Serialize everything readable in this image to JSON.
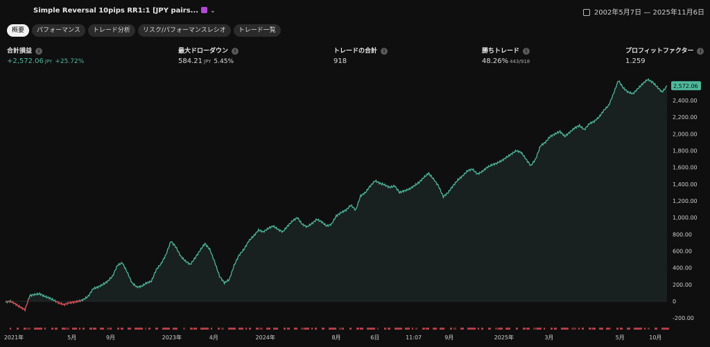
{
  "header": {
    "strategy_title": "Simple Reversal 10pips RR1:1 [JPY pairs...",
    "date_range": "2002年5月7日 — 2025年11月6日"
  },
  "tabs": [
    {
      "label": "概要",
      "active": true
    },
    {
      "label": "パフォーマンス",
      "active": false
    },
    {
      "label": "トレード分析",
      "active": false
    },
    {
      "label": "リスク/パフォーマンスレシオ",
      "active": false
    },
    {
      "label": "トレード一覧",
      "active": false
    }
  ],
  "metrics": {
    "net_profit": {
      "label": "合計損益",
      "value": "+2,572.06",
      "unit": "JPY",
      "secondary": "+25.72%"
    },
    "max_drawdown": {
      "label": "最大ドローダウン",
      "value": "584.21",
      "unit": "JPY",
      "secondary": "5.45%"
    },
    "total_trades": {
      "label": "トレードの合計",
      "value": "918"
    },
    "win_trades": {
      "label": "勝ちトレード",
      "value": "48.26%",
      "secondary": "443/918"
    },
    "profit_factor": {
      "label": "プロフィットファクター",
      "value": "1.259"
    }
  },
  "colors": {
    "positive": "#4fb89c",
    "negative": "#e0454f",
    "background": "#0f0f0f"
  },
  "chart_data": {
    "type": "line",
    "last_value_label": "2,572.06",
    "ylim": [
      -200,
      2650
    ],
    "y_ticks": [
      -200,
      0,
      200,
      400,
      600,
      800,
      1000,
      1200,
      1400,
      1600,
      1800,
      2000,
      2200,
      2400
    ],
    "y_tick_labels": [
      "-200.00",
      "0",
      "200.00",
      "400.00",
      "600.00",
      "800.00",
      "1,000.00",
      "1,200.00",
      "1,400.00",
      "1,600.00",
      "1,800.00",
      "2,000.00",
      "2,200.00",
      "2,400.00"
    ],
    "x_tick_labels": [
      "2021年",
      "5月",
      "9月",
      "2023年",
      "4月",
      "2024年",
      "8月",
      "6日",
      "11:07",
      "9月",
      "2025年",
      "3月",
      "5月",
      "10月"
    ],
    "x_tick_positions": [
      0,
      0.09,
      0.15,
      0.245,
      0.31,
      0.39,
      0.5,
      0.56,
      0.62,
      0.675,
      0.76,
      0.83,
      0.94,
      0.995
    ],
    "series": [
      {
        "values": [
          -10,
          0,
          -30,
          -70,
          -100,
          70,
          80,
          90,
          60,
          40,
          10,
          -20,
          -40,
          -20,
          -10,
          0,
          20,
          60,
          150,
          170,
          200,
          240,
          300,
          430,
          460,
          350,
          220,
          170,
          180,
          220,
          240,
          380,
          450,
          560,
          720,
          650,
          540,
          480,
          440,
          520,
          610,
          690,
          620,
          470,
          300,
          220,
          260,
          430,
          550,
          620,
          720,
          780,
          850,
          830,
          870,
          900,
          860,
          830,
          900,
          960,
          1000,
          920,
          890,
          930,
          980,
          950,
          900,
          920,
          1020,
          1060,
          1090,
          1150,
          1090,
          1260,
          1300,
          1380,
          1440,
          1410,
          1390,
          1360,
          1380,
          1300,
          1320,
          1340,
          1380,
          1420,
          1480,
          1530,
          1460,
          1380,
          1250,
          1300,
          1380,
          1450,
          1500,
          1560,
          1580,
          1520,
          1550,
          1600,
          1630,
          1650,
          1680,
          1720,
          1760,
          1800,
          1780,
          1700,
          1620,
          1700,
          1860,
          1900,
          1970,
          2000,
          2030,
          1970,
          2020,
          2070,
          2100,
          2050,
          2120,
          2150,
          2200,
          2280,
          2340,
          2480,
          2640,
          2550,
          2500,
          2480,
          2540,
          2600,
          2650,
          2620,
          2560,
          2500,
          2572
        ]
      }
    ]
  }
}
